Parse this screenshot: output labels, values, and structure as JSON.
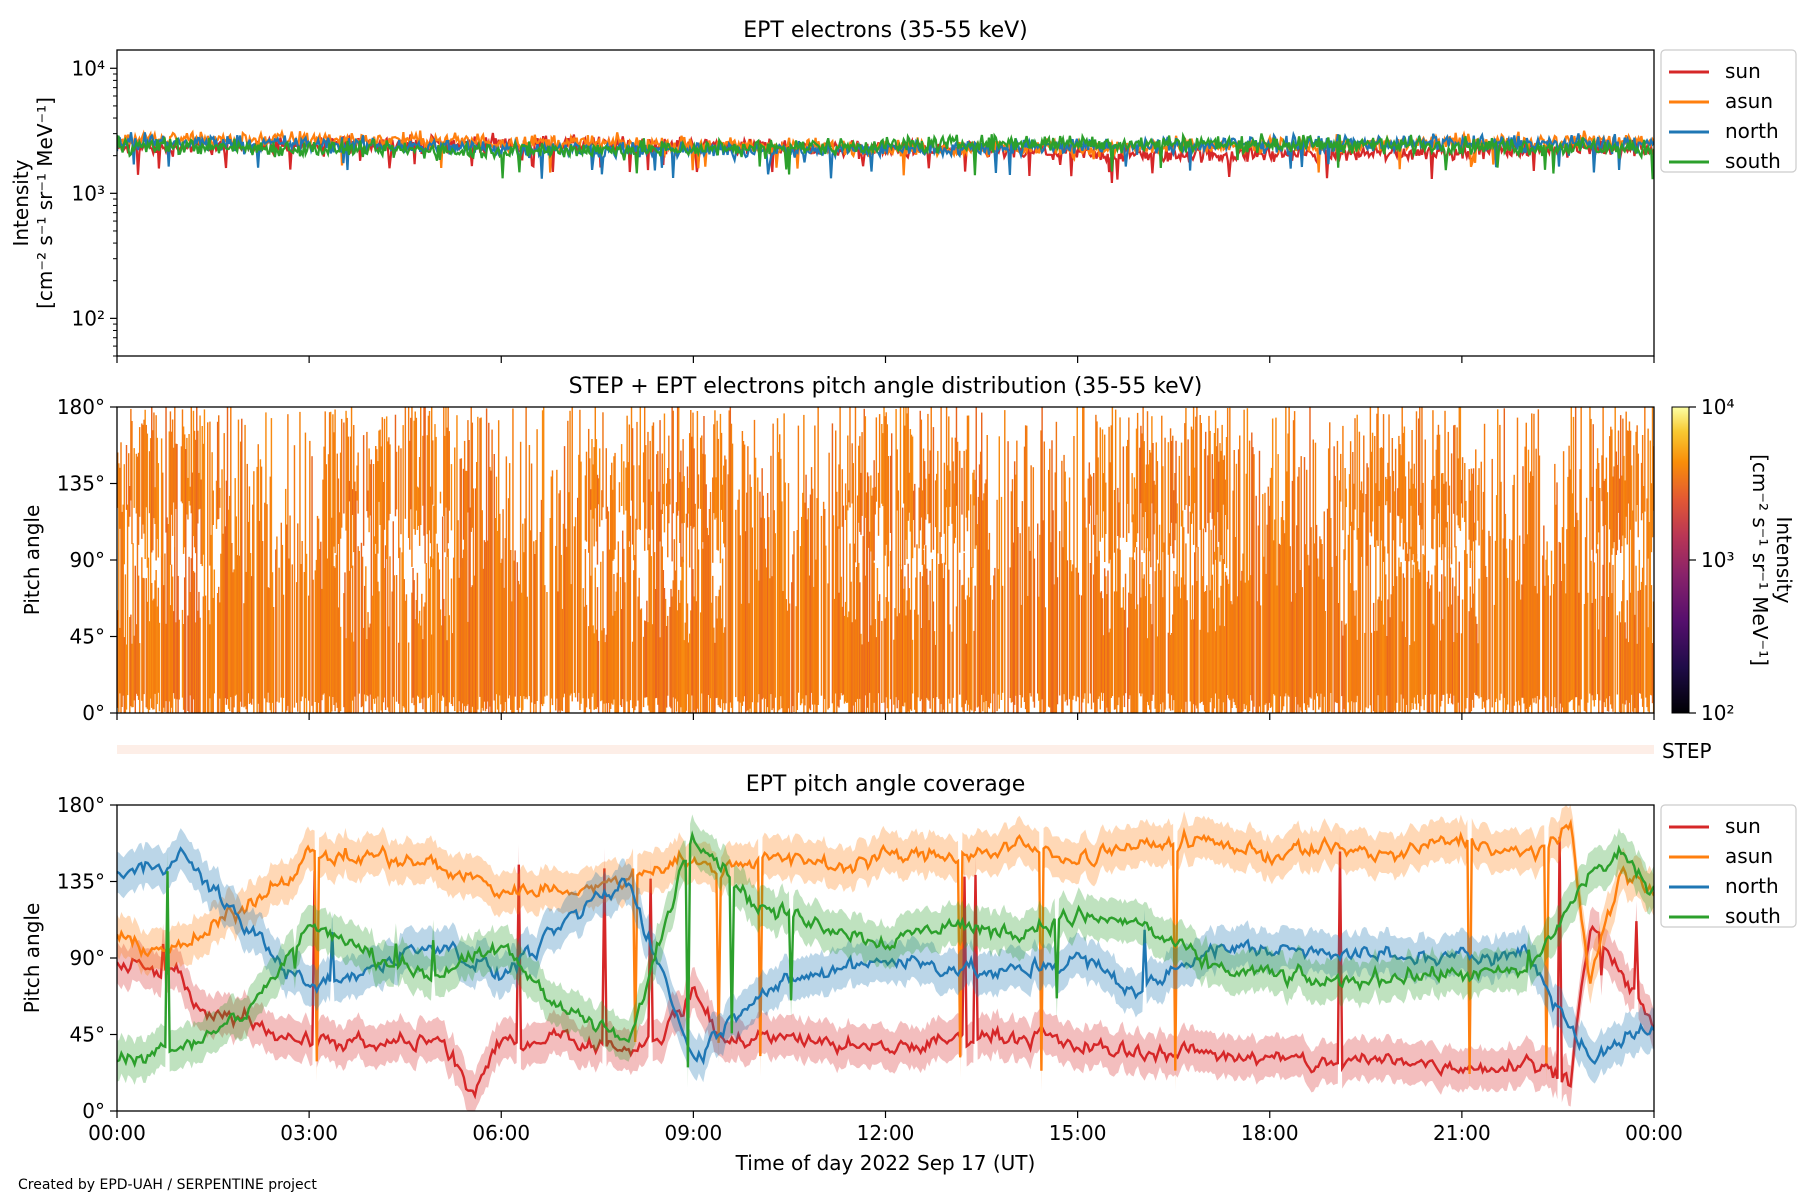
{
  "footer": "Created by EPD-UAH / SERPENTINE project",
  "colors": {
    "sun": "#d62728",
    "asun": "#ff7f0e",
    "north": "#1f77b4",
    "south": "#2ca02c"
  },
  "chart_data": [
    {
      "type": "line",
      "title": "EPT electrons (35-55 keV)",
      "ylabel_lines": [
        "Intensity",
        "[cm⁻² s⁻¹ sr⁻¹ MeV⁻¹]"
      ],
      "yscale": "log",
      "ylim": [
        50,
        14000
      ],
      "yticks": [
        {
          "value": 100,
          "label": "10²"
        },
        {
          "value": 1000,
          "label": "10³"
        },
        {
          "value": 10000,
          "label": "10⁴"
        }
      ],
      "x_range_hours": [
        0,
        24
      ],
      "legend": "outside right",
      "series": [
        {
          "name": "sun",
          "color": "#d62728",
          "typical": 2300
        },
        {
          "name": "asun",
          "color": "#ff7f0e",
          "typical": 2500
        },
        {
          "name": "north",
          "color": "#1f77b4",
          "typical": 2400
        },
        {
          "name": "south",
          "color": "#2ca02c",
          "typical": 2400
        }
      ]
    },
    {
      "type": "heatmap",
      "title": "STEP + EPT electrons pitch angle distribution (35-55 keV)",
      "ylabel": "Pitch angle",
      "ylim": [
        0,
        180
      ],
      "yticks": [
        "0°",
        "45°",
        "90°",
        "135°",
        "180°"
      ],
      "colorbar": {
        "label": "Intensity [cm⁻² s⁻¹ sr⁻¹ MeV⁻¹]",
        "scale": "log",
        "range": [
          100,
          10000
        ],
        "ticks": [
          "10²",
          "10³",
          "10⁴"
        ],
        "colormap": "inferno"
      },
      "typical_intensity": 2400,
      "step_strip_label": "STEP"
    },
    {
      "type": "line",
      "title": "EPT pitch angle coverage",
      "ylabel": "Pitch angle",
      "xlabel": "Time of day 2022 Sep 17 (UT)",
      "ylim": [
        0,
        180
      ],
      "yticks": [
        "0°",
        "45°",
        "90°",
        "135°",
        "180°"
      ],
      "xticks": [
        "00:00",
        "03:00",
        "06:00",
        "09:00",
        "12:00",
        "15:00",
        "18:00",
        "21:00",
        "00:00"
      ],
      "x_range_hours": [
        0,
        24
      ],
      "legend": "outside right",
      "series": [
        {
          "name": "sun",
          "color": "#d62728",
          "x": [
            0,
            1,
            1.3,
            2,
            3,
            4,
            5,
            5.6,
            6,
            7,
            8,
            8.5,
            9,
            9.5,
            10,
            11,
            12,
            13,
            14,
            15,
            16,
            17,
            18,
            19,
            20,
            21,
            22,
            22.7,
            23,
            23.5,
            24
          ],
          "y": [
            85,
            80,
            55,
            55,
            40,
            38,
            42,
            10,
            40,
            45,
            35,
            45,
            70,
            40,
            45,
            40,
            35,
            42,
            45,
            38,
            35,
            35,
            30,
            28,
            30,
            25,
            30,
            20,
            110,
            80,
            50
          ]
        },
        {
          "name": "asun",
          "color": "#ff7f0e",
          "x": [
            0,
            1,
            2,
            3,
            4,
            5,
            6,
            7,
            8,
            8.8,
            9.3,
            10,
            11,
            12,
            13,
            14,
            15,
            16,
            17,
            18,
            19,
            20,
            21,
            22,
            22.7,
            23,
            23.5,
            24
          ],
          "y": [
            100,
            95,
            120,
            150,
            150,
            145,
            130,
            130,
            135,
            150,
            140,
            150,
            145,
            150,
            150,
            155,
            150,
            155,
            160,
            150,
            155,
            150,
            160,
            150,
            165,
            80,
            140,
            130
          ]
        },
        {
          "name": "north",
          "color": "#1f77b4",
          "x": [
            0,
            1,
            2,
            3,
            4,
            5,
            6,
            7,
            8,
            9,
            10,
            11,
            12,
            13,
            14,
            15,
            16,
            17,
            18,
            19,
            20,
            21,
            22,
            23,
            23.5,
            24
          ],
          "y": [
            140,
            150,
            110,
            70,
            85,
            100,
            80,
            110,
            135,
            30,
            70,
            80,
            90,
            85,
            80,
            90,
            70,
            95,
            95,
            95,
            90,
            90,
            95,
            30,
            40,
            50
          ]
        },
        {
          "name": "south",
          "color": "#2ca02c",
          "x": [
            0,
            1,
            2,
            3,
            4,
            5,
            6,
            7,
            8,
            9,
            10,
            11,
            12,
            13,
            14,
            15,
            16,
            17,
            18,
            19,
            20,
            21,
            22,
            23,
            23.5,
            24
          ],
          "y": [
            30,
            40,
            55,
            110,
            90,
            80,
            95,
            60,
            40,
            165,
            120,
            110,
            100,
            110,
            105,
            115,
            110,
            85,
            80,
            75,
            80,
            80,
            80,
            140,
            150,
            130
          ]
        }
      ]
    }
  ]
}
